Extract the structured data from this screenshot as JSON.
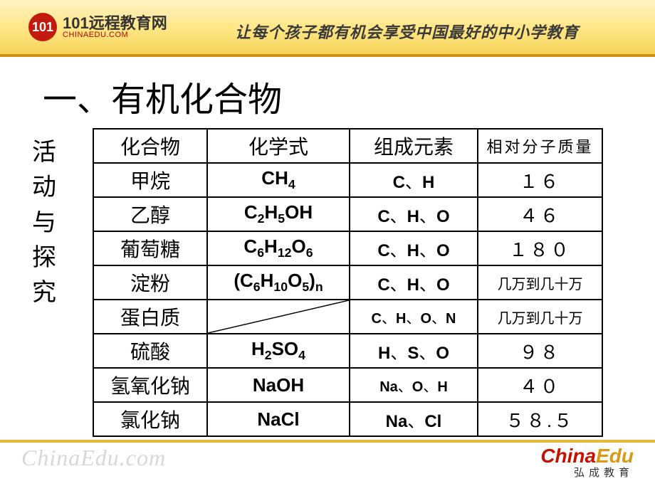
{
  "header": {
    "logo_circle": "101",
    "logo_main": "101远程教育网",
    "logo_sub": "CHINAEDU.COM",
    "slogan": "让每个孩子都有机会享受中国最好的中小学教育"
  },
  "title": "一、有机化合物",
  "vertical_label": "活动与探究",
  "table": {
    "columns": [
      "化合物",
      "化学式",
      "组成元素",
      "相对分子质量"
    ],
    "rows": [
      {
        "compound": "甲烷",
        "formula_html": "CH<sub>4</sub>",
        "elements_html": "C<span class='sep'>、</span>H",
        "mass": "１６",
        "diag": false
      },
      {
        "compound": "乙醇",
        "formula_html": "C<sub>2</sub>H<sub>5</sub>OH",
        "elements_html": "C<span class='sep'>、</span>H<span class='sep'>、</span>O",
        "mass": "４６",
        "diag": false
      },
      {
        "compound": "葡萄糖",
        "formula_html": "C<sub>6</sub>H<sub>12</sub>O<sub>6</sub>",
        "elements_html": "C<span class='sep'>、</span>H<span class='sep'>、</span>O",
        "mass": "１８０",
        "diag": false
      },
      {
        "compound": "淀粉",
        "formula_html": "(C<sub>6</sub>H<sub>10</sub>O<sub>5</sub>)<sub>n</sub>",
        "elements_html": "C<span class='sep'>、</span>H<span class='sep'>、</span>O",
        "mass": "几万到几十万",
        "mass_small": true,
        "diag": false
      },
      {
        "compound": "蛋白质",
        "formula_html": "",
        "elements_html": "C<span class='sep'>、</span>H<span class='sep'>、</span>O<span class='sep'>、</span>N",
        "elements_small": true,
        "mass": "几万到几十万",
        "mass_small": true,
        "diag": true
      },
      {
        "compound": "硫酸",
        "formula_html": "H<sub>2</sub>SO<sub>4</sub>",
        "elements_html": "H<span class='sep'>、</span>S<span class='sep'>、</span>O",
        "mass": "９８",
        "diag": false
      },
      {
        "compound": "氢氧化钠",
        "formula_html": "NaOH",
        "elements_html": "Na<span class='sep'>、</span>O<span class='sep'>、</span>H",
        "elements_small": true,
        "mass": "４０",
        "diag": false
      },
      {
        "compound": "氯化钠",
        "formula_html": "NaCl",
        "elements_html": "Na<span class='sep'>、</span>Cl",
        "mass": "５８.５",
        "diag": false
      }
    ]
  },
  "footer": {
    "watermark": "ChinaEdu.com",
    "logo_red": "China",
    "logo_gold": "Edu",
    "logo_sub": "弘成教育"
  },
  "colors": {
    "band_top": "#fff1c6",
    "band_mid": "#ffe788",
    "band_bot": "#f6d45a",
    "band_border": "#d18f14",
    "brand_red": "#c31a0f",
    "watermark": "#d8d8d8"
  }
}
